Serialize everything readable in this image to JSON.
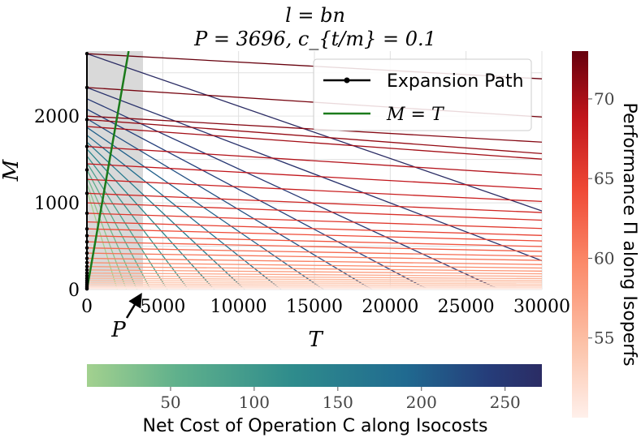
{
  "chart_data": {
    "type": "line",
    "title_line1": "l = bn",
    "title_line2": "P = 3696, c_{t/m} = 0.1",
    "xlabel": "T",
    "ylabel": "M",
    "xlim": [
      0,
      30000
    ],
    "ylim": [
      0,
      2750
    ],
    "x_ticks": [
      0,
      5000,
      10000,
      15000,
      20000,
      25000,
      30000
    ],
    "x_tick_labels": [
      "0",
      "5000",
      "10000",
      "15000",
      "20000",
      "25000",
      "30000"
    ],
    "y_ticks": [
      0,
      1000,
      2000
    ],
    "y_tick_labels": [
      "0",
      "1000",
      "2000"
    ],
    "grid": true,
    "legend_placement": "top-right",
    "legend": [
      {
        "label": "Expansion Path",
        "color": "#000000"
      },
      {
        "label": "M = T",
        "color": "#1b7a1b"
      }
    ],
    "P_value": 3696,
    "P_label": "P",
    "shaded_region_x": [
      0,
      3696
    ],
    "isocosts": [
      {
        "m0": 1145,
        "t0": 2000
      },
      {
        "m0": 1220,
        "t0": 2600
      },
      {
        "m0": 1300,
        "t0": 3300
      },
      {
        "m0": 1380,
        "t0": 4200
      },
      {
        "m0": 1460,
        "t0": 5300
      },
      {
        "m0": 1540,
        "t0": 6700
      },
      {
        "m0": 1620,
        "t0": 8400
      },
      {
        "m0": 1700,
        "t0": 10400
      },
      {
        "m0": 1780,
        "t0": 12800
      },
      {
        "m0": 1870,
        "t0": 15600
      },
      {
        "m0": 1970,
        "t0": 18800
      },
      {
        "m0": 2080,
        "t0": 22500
      },
      {
        "m0": 2200,
        "t0": 27200
      },
      {
        "m0": 2330,
        "t0": 35000
      },
      {
        "m0": 2720,
        "t0": 45000
      }
    ],
    "isoperfs": [
      {
        "m0": 8,
        "m_end": 6
      },
      {
        "m0": 18,
        "m_end": 14
      },
      {
        "m0": 30,
        "m_end": 24
      },
      {
        "m0": 45,
        "m_end": 36
      },
      {
        "m0": 62,
        "m_end": 50
      },
      {
        "m0": 82,
        "m_end": 66
      },
      {
        "m0": 105,
        "m_end": 84
      },
      {
        "m0": 130,
        "m_end": 104
      },
      {
        "m0": 158,
        "m_end": 126
      },
      {
        "m0": 190,
        "m_end": 152
      },
      {
        "m0": 226,
        "m_end": 181
      },
      {
        "m0": 265,
        "m_end": 212
      },
      {
        "m0": 310,
        "m_end": 248
      },
      {
        "m0": 360,
        "m_end": 288
      },
      {
        "m0": 420,
        "m_end": 336
      },
      {
        "m0": 480,
        "m_end": 384
      },
      {
        "m0": 550,
        "m_end": 440
      },
      {
        "m0": 620,
        "m_end": 496
      },
      {
        "m0": 700,
        "m_end": 560
      },
      {
        "m0": 780,
        "m_end": 624
      },
      {
        "m0": 880,
        "m_end": 704
      },
      {
        "m0": 1000,
        "m_end": 800
      },
      {
        "m0": 1110,
        "m_end": 888
      },
      {
        "m0": 1270,
        "m_end": 1016
      },
      {
        "m0": 1450,
        "m_end": 1160
      },
      {
        "m0": 1650,
        "m_end": 1320
      },
      {
        "m0": 1880,
        "m_end": 1504
      },
      {
        "m0": 1960,
        "m_end": 1568
      },
      {
        "m0": 2000,
        "m_end": 1700
      },
      {
        "m0": 2330,
        "m_end": 1990
      },
      {
        "m0": 2720,
        "m_end": 2430
      }
    ],
    "expansion_path": [
      {
        "t": 0,
        "m": 8
      },
      {
        "t": 0,
        "m": 18
      },
      {
        "t": 0,
        "m": 30
      },
      {
        "t": 0,
        "m": 45
      },
      {
        "t": 0,
        "m": 62
      },
      {
        "t": 0,
        "m": 82
      },
      {
        "t": 0,
        "m": 105
      },
      {
        "t": 0,
        "m": 130
      },
      {
        "t": 0,
        "m": 158
      },
      {
        "t": 0,
        "m": 190
      },
      {
        "t": 0,
        "m": 226
      },
      {
        "t": 0,
        "m": 265
      },
      {
        "t": 0,
        "m": 310
      },
      {
        "t": 0,
        "m": 360
      },
      {
        "t": 0,
        "m": 420
      },
      {
        "t": 0,
        "m": 480
      },
      {
        "t": 0,
        "m": 550
      },
      {
        "t": 0,
        "m": 620
      },
      {
        "t": 0,
        "m": 700
      },
      {
        "t": 0,
        "m": 880
      },
      {
        "t": 0,
        "m": 1110
      },
      {
        "t": 0,
        "m": 1380
      },
      {
        "t": 0,
        "m": 1650
      },
      {
        "t": 0,
        "m": 1960
      },
      {
        "t": 0,
        "m": 2330
      },
      {
        "t": 0,
        "m": 2720
      }
    ],
    "colorbar_cost": {
      "label": "Net Cost of Operation C along Isocosts",
      "ticks": [
        50,
        100,
        150,
        200,
        250
      ],
      "range": [
        0,
        272
      ],
      "colors": [
        "#a3d18f",
        "#5fb08c",
        "#2f8c8c",
        "#206a90",
        "#253d7a",
        "#2b2c64"
      ]
    },
    "colorbar_perf": {
      "label": "Performance Π along Isoperfs",
      "ticks": [
        55,
        60,
        65,
        70
      ],
      "range": [
        50,
        73
      ],
      "colors": [
        "#fff0eb",
        "#fcc2a8",
        "#fb8a6a",
        "#ef4a36",
        "#c1151b",
        "#67000d"
      ]
    }
  }
}
